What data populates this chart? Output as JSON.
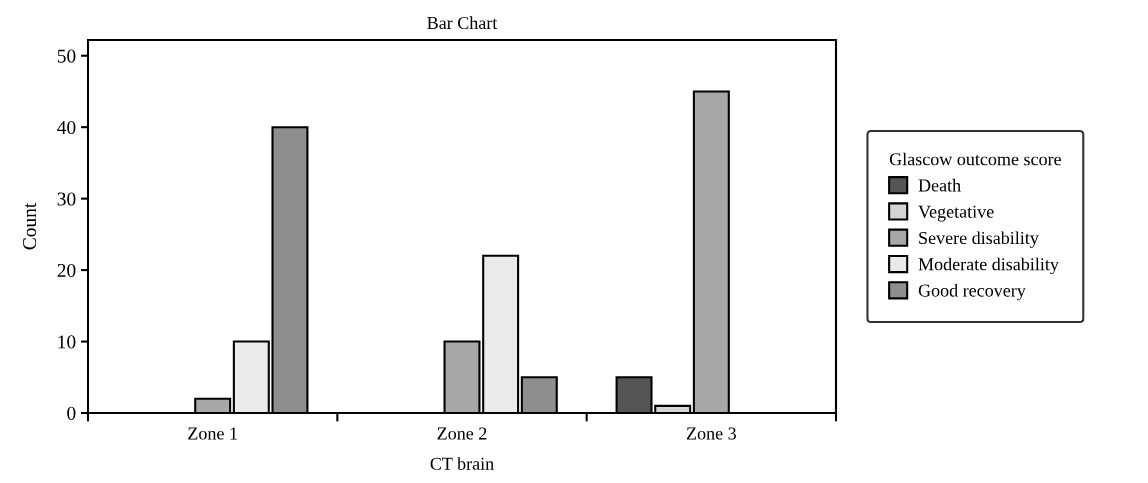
{
  "chart_data": {
    "type": "bar",
    "title": "Bar Chart",
    "xlabel": "CT brain",
    "ylabel": "Count",
    "legend_title": "Glascow outcome score",
    "categories": [
      "Zone 1",
      "Zone 2",
      "Zone 3"
    ],
    "series": [
      {
        "name": "Death",
        "color": "#555555",
        "values": [
          0,
          0,
          5
        ]
      },
      {
        "name": "Vegetative",
        "color": "#d4d4d4",
        "values": [
          0,
          0,
          1
        ]
      },
      {
        "name": "Severe disability",
        "color": "#a8a8a8",
        "values": [
          2,
          10,
          45
        ]
      },
      {
        "name": "Moderate disability",
        "color": "#eaeaea",
        "values": [
          10,
          22,
          0
        ]
      },
      {
        "name": "Good recovery",
        "color": "#8e8e8e",
        "values": [
          40,
          5,
          0
        ]
      }
    ],
    "ylim": [
      0,
      52.2
    ],
    "yticks": [
      0,
      10,
      20,
      30,
      40,
      50
    ],
    "grid": false,
    "legend": "right"
  }
}
